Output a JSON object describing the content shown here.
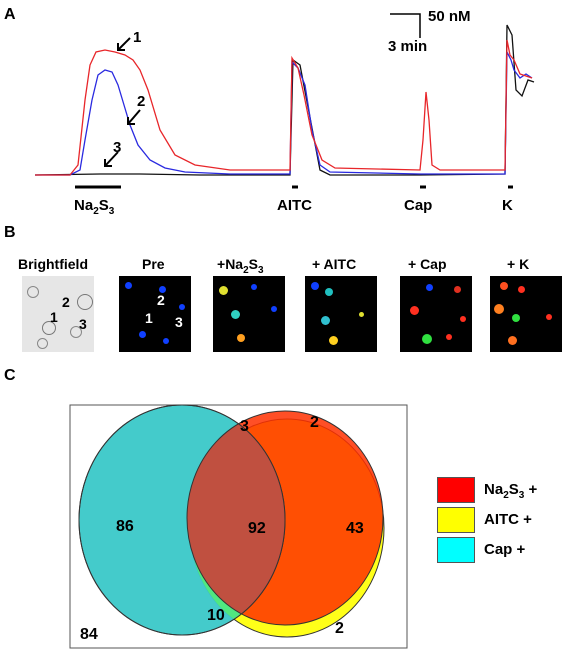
{
  "panelA": {
    "label": "A",
    "scale_y": "50 nM",
    "scale_x": "3 min",
    "stimuli": [
      {
        "key": "na",
        "pre": "Na",
        "sub1": "2",
        "mid": "S",
        "sub2": "3"
      },
      {
        "key": "aitc",
        "text": "AITC"
      },
      {
        "key": "cap",
        "text": "Cap"
      },
      {
        "key": "k",
        "text": "K"
      }
    ],
    "trace_labels": [
      "1",
      "2",
      "3"
    ],
    "trace_colors": {
      "trace1": "#e8262a",
      "trace2": "#2a2ae0",
      "trace3": "#111111"
    }
  },
  "panelB": {
    "label": "B",
    "images": {
      "brightfield": "Brightfield",
      "pre": "Pre",
      "na": {
        "plus": "+",
        "pre": "Na",
        "sub1": "2",
        "mid": "S",
        "sub2": "3"
      },
      "aitc": "+ AITC",
      "cap": "+ Cap",
      "k": "+ K"
    },
    "cell_labels": [
      "1",
      "2",
      "3"
    ]
  },
  "panelC": {
    "label": "C",
    "counts": {
      "cap_only": "86",
      "triple": "92",
      "na_aitc": "43",
      "cap_aitc": "10",
      "cap_na_top": "3",
      "na_only": "2",
      "aitc_only": "2",
      "none": "84"
    },
    "legend": [
      {
        "key": "na",
        "color": "#ff0000",
        "pre": "Na",
        "sub1": "2",
        "mid": "S",
        "sub2": "3",
        "post": " +"
      },
      {
        "key": "aitc",
        "color": "#ffff00",
        "text": "AITC +"
      },
      {
        "key": "cap",
        "color": "#00ffff",
        "text": "Cap +"
      }
    ]
  }
}
